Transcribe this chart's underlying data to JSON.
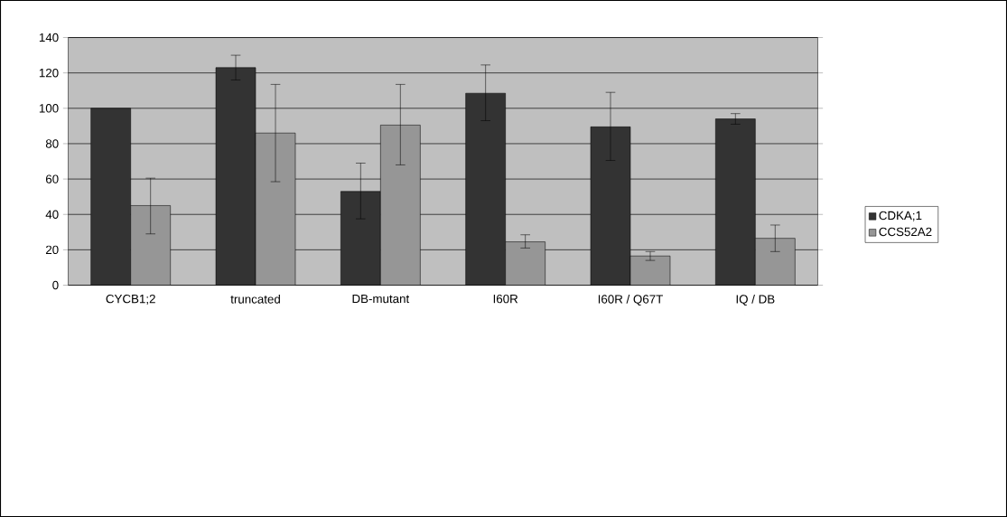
{
  "chart_data": {
    "type": "bar",
    "categories": [
      "CYCB1;2",
      "truncated",
      "DB-mutant",
      "I60R",
      "I60R / Q67T",
      "IQ / DB"
    ],
    "series": [
      {
        "name": "CDKA;1",
        "color": "#333333",
        "values": [
          100,
          123,
          53,
          108.5,
          89.5,
          94
        ],
        "errors": [
          null,
          [
            116,
            130
          ],
          [
            37.5,
            69
          ],
          [
            93,
            124.5
          ],
          [
            70.5,
            109
          ],
          [
            91,
            97
          ]
        ]
      },
      {
        "name": "CCS52A2",
        "color": "#969696",
        "values": [
          45,
          86,
          90.5,
          24.5,
          16.5,
          26.5
        ],
        "errors": [
          [
            29,
            60.5
          ],
          [
            58.5,
            113.5
          ],
          [
            68,
            113.5
          ],
          [
            21,
            28.5
          ],
          [
            14,
            19
          ],
          [
            19,
            34
          ]
        ]
      }
    ],
    "ylim": [
      0,
      140
    ],
    "yticks": [
      0,
      20,
      40,
      60,
      80,
      100,
      120,
      140
    ],
    "grid": "y",
    "legend": "right"
  }
}
